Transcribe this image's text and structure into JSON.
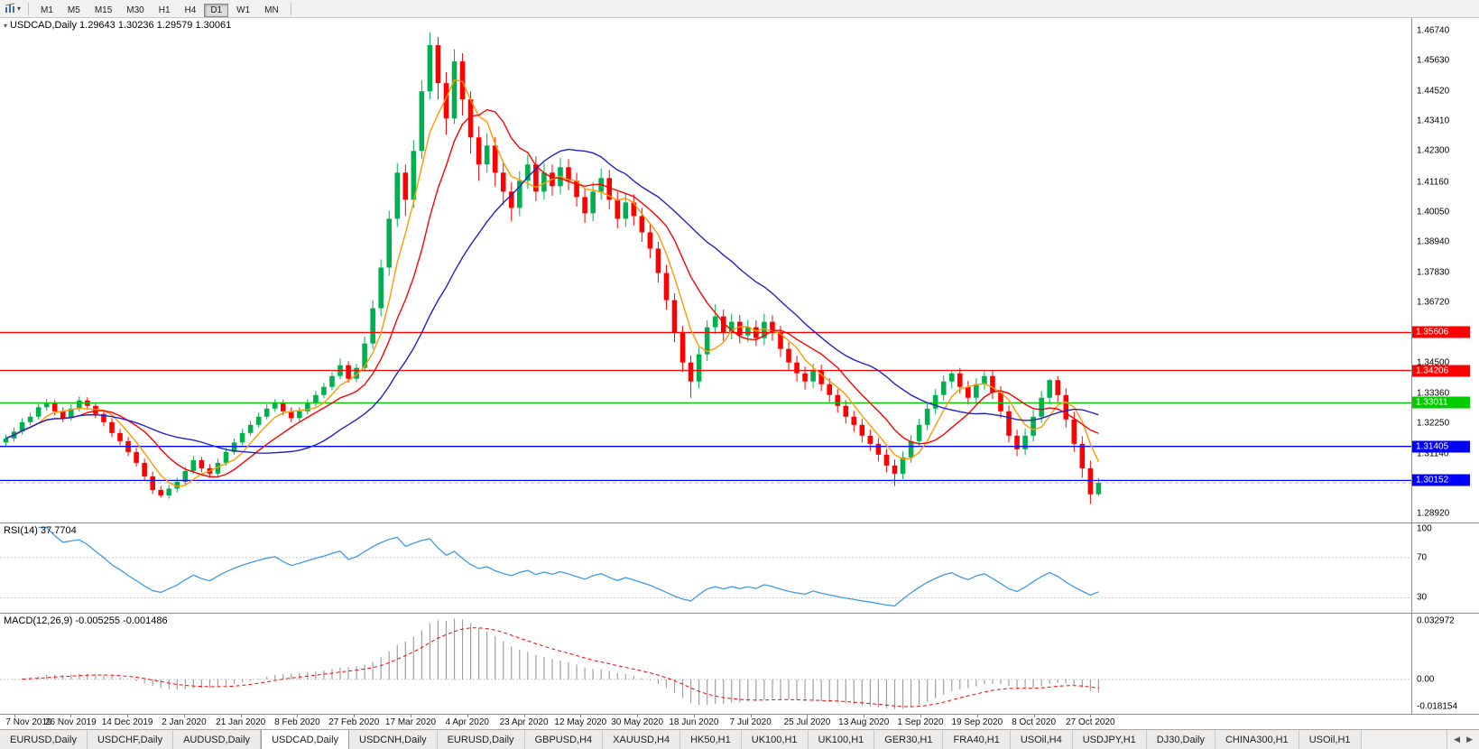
{
  "toolbar": {
    "timeframes": [
      "M1",
      "M5",
      "M15",
      "M30",
      "H1",
      "H4",
      "D1",
      "W1",
      "MN"
    ],
    "active_timeframe": "D1"
  },
  "chart": {
    "info_line": "USDCAD,Daily  1.29643 1.30236 1.29579 1.30061",
    "symbol": "USDCAD",
    "period": "Daily"
  },
  "chart_data": {
    "type": "candlestick",
    "title": "USDCAD Daily",
    "ohlc_current": {
      "open": 1.29643,
      "high": 1.30236,
      "low": 1.29579,
      "close": 1.30061
    },
    "price_axis": {
      "min": 1.286,
      "max": 1.472,
      "labels": [
        "1.46740",
        "1.45630",
        "1.44520",
        "1.43410",
        "1.42300",
        "1.41160",
        "1.40050",
        "1.38940",
        "1.37830",
        "1.36720",
        "1.35600",
        "1.34500",
        "1.33360",
        "1.32250",
        "1.31140",
        "1.30030",
        "1.28920"
      ]
    },
    "date_labels": [
      "7 Nov 2019",
      "26 Nov 2019",
      "14 Dec 2019",
      "2 Jan 2020",
      "21 Jan 2020",
      "8 Feb 2020",
      "27 Feb 2020",
      "17 Mar 2020",
      "4 Apr 2020",
      "23 Apr 2020",
      "12 May 2020",
      "30 May 2020",
      "18 Jun 2020",
      "7 Jul 2020",
      "25 Jul 2020",
      "13 Aug 2020",
      "1 Sep 2020",
      "19 Sep 2020",
      "8 Oct 2020",
      "27 Oct 2020"
    ],
    "horizontal_lines": [
      {
        "price": 1.35606,
        "label": "1.35606",
        "color": "#ff0000"
      },
      {
        "price": 1.34206,
        "label": "1.34206",
        "color": "#ff0000"
      },
      {
        "price": 1.33011,
        "label": "1.33011",
        "color": "#00cc00"
      },
      {
        "price": 1.31405,
        "label": "1.31405",
        "color": "#0000ff"
      },
      {
        "price": 1.30152,
        "label": "1.30152",
        "color": "#0000ff"
      }
    ],
    "bid_line": {
      "price": 1.30061,
      "color": "#c0c0c0"
    },
    "up_color": "#00b050",
    "down_color": "#ff0000",
    "moving_averages": [
      {
        "name": "ma-fast",
        "period": 5,
        "color": "#ff9900"
      },
      {
        "name": "ma-medium",
        "period": 10,
        "color": "#ff0000"
      },
      {
        "name": "ma-slow",
        "period": 22,
        "color": "#2222cc"
      }
    ],
    "candles": [
      [
        1.3155,
        1.3185,
        1.314,
        1.317
      ],
      [
        1.317,
        1.321,
        1.3158,
        1.3195
      ],
      [
        1.3195,
        1.3245,
        1.3185,
        1.323
      ],
      [
        1.323,
        1.3265,
        1.3218,
        1.325
      ],
      [
        1.325,
        1.3298,
        1.324,
        1.3285
      ],
      [
        1.3285,
        1.3315,
        1.3272,
        1.33
      ],
      [
        1.33,
        1.3312,
        1.3255,
        1.327
      ],
      [
        1.327,
        1.3285,
        1.323,
        1.3245
      ],
      [
        1.3245,
        1.3295,
        1.3235,
        1.328
      ],
      [
        1.328,
        1.3325,
        1.327,
        1.331
      ],
      [
        1.331,
        1.3322,
        1.3275,
        1.329
      ],
      [
        1.329,
        1.3302,
        1.3245,
        1.326
      ],
      [
        1.326,
        1.3275,
        1.3215,
        1.323
      ],
      [
        1.323,
        1.3245,
        1.3175,
        1.319
      ],
      [
        1.319,
        1.3205,
        1.3145,
        1.316
      ],
      [
        1.316,
        1.3175,
        1.3105,
        1.312
      ],
      [
        1.312,
        1.3135,
        1.3065,
        1.308
      ],
      [
        1.308,
        1.3095,
        1.3015,
        1.303
      ],
      [
        1.303,
        1.3048,
        1.2965,
        1.298
      ],
      [
        1.298,
        1.2995,
        1.2952,
        1.296
      ],
      [
        1.296,
        1.3,
        1.2948,
        1.2985
      ],
      [
        1.2985,
        1.3025,
        1.2972,
        1.301
      ],
      [
        1.301,
        1.3065,
        1.3,
        1.305
      ],
      [
        1.305,
        1.3105,
        1.304,
        1.309
      ],
      [
        1.309,
        1.3102,
        1.3045,
        1.306
      ],
      [
        1.306,
        1.3075,
        1.3025,
        1.304
      ],
      [
        1.304,
        1.3095,
        1.303,
        1.308
      ],
      [
        1.308,
        1.3135,
        1.307,
        1.312
      ],
      [
        1.312,
        1.317,
        1.311,
        1.3155
      ],
      [
        1.3155,
        1.3205,
        1.3145,
        1.319
      ],
      [
        1.319,
        1.3235,
        1.318,
        1.322
      ],
      [
        1.322,
        1.3265,
        1.321,
        1.325
      ],
      [
        1.325,
        1.3295,
        1.324,
        1.328
      ],
      [
        1.328,
        1.3315,
        1.3268,
        1.33
      ],
      [
        1.33,
        1.3312,
        1.3255,
        1.327
      ],
      [
        1.327,
        1.3285,
        1.323,
        1.3245
      ],
      [
        1.3245,
        1.3285,
        1.3232,
        1.327
      ],
      [
        1.327,
        1.3315,
        1.3258,
        1.33
      ],
      [
        1.33,
        1.3345,
        1.3288,
        1.333
      ],
      [
        1.333,
        1.3375,
        1.3318,
        1.336
      ],
      [
        1.336,
        1.3415,
        1.3348,
        1.34
      ],
      [
        1.34,
        1.3465,
        1.3388,
        1.344
      ],
      [
        1.344,
        1.3455,
        1.3375,
        1.339
      ],
      [
        1.339,
        1.3445,
        1.3378,
        1.343
      ],
      [
        1.343,
        1.3545,
        1.3415,
        1.352
      ],
      [
        1.352,
        1.368,
        1.35,
        1.365
      ],
      [
        1.365,
        1.383,
        1.362,
        1.38
      ],
      [
        1.38,
        1.401,
        1.377,
        1.398
      ],
      [
        1.398,
        1.4185,
        1.395,
        1.415
      ],
      [
        1.415,
        1.418,
        1.399,
        1.405
      ],
      [
        1.405,
        1.427,
        1.402,
        1.423
      ],
      [
        1.423,
        1.449,
        1.42,
        1.445
      ],
      [
        1.445,
        1.4668,
        1.442,
        1.462
      ],
      [
        1.462,
        1.465,
        1.442,
        1.448
      ],
      [
        1.448,
        1.452,
        1.429,
        1.435
      ],
      [
        1.435,
        1.4605,
        1.433,
        1.456
      ],
      [
        1.456,
        1.459,
        1.436,
        1.442
      ],
      [
        1.442,
        1.445,
        1.422,
        1.428
      ],
      [
        1.428,
        1.432,
        1.412,
        1.418
      ],
      [
        1.418,
        1.4295,
        1.415,
        1.425
      ],
      [
        1.425,
        1.428,
        1.41,
        1.415
      ],
      [
        1.415,
        1.4185,
        1.403,
        1.408
      ],
      [
        1.408,
        1.4115,
        1.397,
        1.402
      ],
      [
        1.402,
        1.4155,
        1.399,
        1.412
      ],
      [
        1.412,
        1.4215,
        1.409,
        1.418
      ],
      [
        1.418,
        1.421,
        1.4045,
        1.408
      ],
      [
        1.408,
        1.4185,
        1.405,
        1.415
      ],
      [
        1.415,
        1.418,
        1.4065,
        1.41
      ],
      [
        1.41,
        1.4205,
        1.407,
        1.417
      ],
      [
        1.417,
        1.42,
        1.4085,
        1.412
      ],
      [
        1.412,
        1.415,
        1.4025,
        1.406
      ],
      [
        1.406,
        1.409,
        1.3965,
        1.4
      ],
      [
        1.4,
        1.4115,
        1.397,
        1.408
      ],
      [
        1.408,
        1.4165,
        1.405,
        1.413
      ],
      [
        1.413,
        1.416,
        1.4015,
        1.405
      ],
      [
        1.405,
        1.408,
        1.3945,
        1.398
      ],
      [
        1.398,
        1.4075,
        1.395,
        1.404
      ],
      [
        1.404,
        1.407,
        1.3955,
        1.399
      ],
      [
        1.399,
        1.402,
        1.3895,
        1.393
      ],
      [
        1.393,
        1.396,
        1.3835,
        1.387
      ],
      [
        1.387,
        1.3895,
        1.3745,
        1.378
      ],
      [
        1.378,
        1.381,
        1.3645,
        1.368
      ],
      [
        1.368,
        1.3705,
        1.3525,
        1.356
      ],
      [
        1.356,
        1.3585,
        1.3415,
        1.345
      ],
      [
        1.345,
        1.3475,
        1.332,
        1.338
      ],
      [
        1.338,
        1.3505,
        1.3355,
        1.348
      ],
      [
        1.348,
        1.3605,
        1.3455,
        1.358
      ],
      [
        1.358,
        1.3665,
        1.3555,
        1.362
      ],
      [
        1.362,
        1.3645,
        1.353,
        1.356
      ],
      [
        1.356,
        1.363,
        1.3535,
        1.36
      ],
      [
        1.36,
        1.3625,
        1.352,
        1.355
      ],
      [
        1.355,
        1.3608,
        1.3525,
        1.358
      ],
      [
        1.358,
        1.3605,
        1.351,
        1.354
      ],
      [
        1.354,
        1.363,
        1.3515,
        1.36
      ],
      [
        1.36,
        1.3625,
        1.353,
        1.356
      ],
      [
        1.356,
        1.3585,
        1.347,
        1.35
      ],
      [
        1.35,
        1.3525,
        1.342,
        1.345
      ],
      [
        1.345,
        1.3475,
        1.338,
        1.341
      ],
      [
        1.341,
        1.3435,
        1.335,
        1.338
      ],
      [
        1.338,
        1.3445,
        1.3355,
        1.342
      ],
      [
        1.342,
        1.3442,
        1.3345,
        1.337
      ],
      [
        1.337,
        1.3392,
        1.3305,
        1.333
      ],
      [
        1.333,
        1.3352,
        1.3265,
        1.329
      ],
      [
        1.329,
        1.3312,
        1.3225,
        1.325
      ],
      [
        1.325,
        1.3272,
        1.3195,
        1.322
      ],
      [
        1.322,
        1.3242,
        1.3155,
        1.318
      ],
      [
        1.318,
        1.3202,
        1.3125,
        1.315
      ],
      [
        1.315,
        1.3172,
        1.3085,
        1.311
      ],
      [
        1.311,
        1.3132,
        1.3045,
        1.307
      ],
      [
        1.307,
        1.3092,
        1.2995,
        1.304
      ],
      [
        1.304,
        1.3122,
        1.302,
        1.31
      ],
      [
        1.31,
        1.3182,
        1.308,
        1.316
      ],
      [
        1.316,
        1.3242,
        1.314,
        1.322
      ],
      [
        1.322,
        1.3302,
        1.32,
        1.328
      ],
      [
        1.328,
        1.3352,
        1.326,
        1.333
      ],
      [
        1.333,
        1.3402,
        1.331,
        1.338
      ],
      [
        1.338,
        1.3418,
        1.3355,
        1.341
      ],
      [
        1.341,
        1.343,
        1.3335,
        1.336
      ],
      [
        1.336,
        1.3382,
        1.3295,
        1.332
      ],
      [
        1.332,
        1.3392,
        1.33,
        1.337
      ],
      [
        1.337,
        1.3418,
        1.335,
        1.34
      ],
      [
        1.34,
        1.342,
        1.3315,
        1.334
      ],
      [
        1.334,
        1.3362,
        1.3245,
        1.327
      ],
      [
        1.327,
        1.3292,
        1.3155,
        1.318
      ],
      [
        1.318,
        1.3202,
        1.3105,
        1.313
      ],
      [
        1.313,
        1.3205,
        1.3108,
        1.318
      ],
      [
        1.318,
        1.3275,
        1.3158,
        1.325
      ],
      [
        1.325,
        1.3345,
        1.3228,
        1.332
      ],
      [
        1.332,
        1.339,
        1.3298,
        1.3385
      ],
      [
        1.3385,
        1.34,
        1.3305,
        1.333
      ],
      [
        1.333,
        1.3355,
        1.321,
        1.324
      ],
      [
        1.324,
        1.3268,
        1.312,
        1.315
      ],
      [
        1.315,
        1.3178,
        1.3025,
        1.306
      ],
      [
        1.306,
        1.3088,
        1.2928,
        1.2964
      ],
      [
        1.29643,
        1.30236,
        1.29579,
        1.30061
      ]
    ],
    "indicators": {
      "rsi": {
        "label": "RSI(14) 37.7704",
        "period": 14,
        "value": 37.7704,
        "levels": [
          "100",
          "70",
          "30"
        ],
        "level_values": [
          100,
          70,
          30
        ],
        "color": "#3d9be9"
      },
      "macd": {
        "label": "MACD(12,26,9) -0.005255 -0.001486",
        "fast": 12,
        "slow": 26,
        "signal": 9,
        "main_value": -0.005255,
        "signal_value": -0.001486,
        "scale_labels": [
          "0.032972",
          "0.00",
          "-0.018154"
        ],
        "histogram_color": "#a0a0a0",
        "signal_color": "#ff0000"
      }
    }
  },
  "tabs": {
    "items": [
      "EURUSD,Daily",
      "USDCHF,Daily",
      "AUDUSD,Daily",
      "USDCAD,Daily",
      "USDCNH,Daily",
      "EURUSD,Daily",
      "GBPUSD,H4",
      "XAUUSD,H4",
      "HK50,H1",
      "UK100,H1",
      "UK100,H1",
      "GER30,H1",
      "FRA40,H1",
      "USOil,H4",
      "USDJPY,H1",
      "DJ30,Daily",
      "CHINA300,H1",
      "USOil,H1"
    ],
    "active_index": 3,
    "scroll_left_glyph": "◀",
    "scroll_right_glyph": "▶"
  }
}
